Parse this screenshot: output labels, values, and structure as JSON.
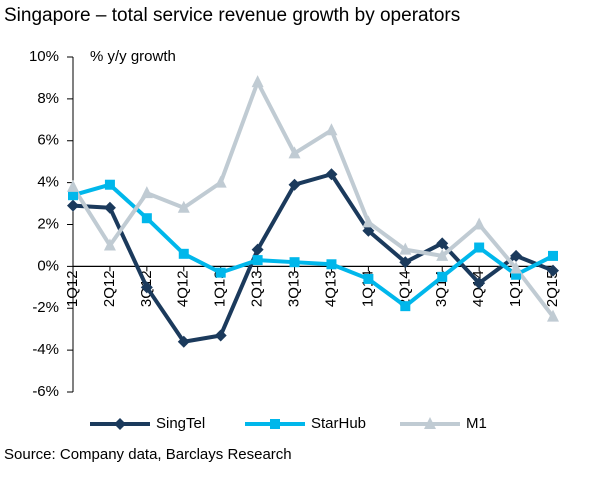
{
  "chart_data": {
    "type": "line",
    "title": "Singapore – total service revenue growth by operators",
    "y_axis_label": "% y/y growth",
    "source": "Source: Company data, Barclays Research",
    "categories": [
      "1Q12",
      "2Q12",
      "3Q12",
      "4Q12",
      "1Q13",
      "2Q13",
      "3Q13",
      "4Q13",
      "1Q14",
      "2Q14",
      "3Q14",
      "4Q14",
      "1Q15",
      "2Q15"
    ],
    "series": [
      {
        "name": "SingTel",
        "color": "#1b3a5c",
        "marker": "diamond",
        "values": [
          2.9,
          2.8,
          -1.0,
          -3.6,
          -3.3,
          0.8,
          3.9,
          4.4,
          1.7,
          0.2,
          1.1,
          -0.8,
          0.5,
          -0.2
        ]
      },
      {
        "name": "StarHub",
        "color": "#00b7eb",
        "marker": "square",
        "values": [
          3.4,
          3.9,
          2.3,
          0.6,
          -0.3,
          0.3,
          0.2,
          0.1,
          -0.6,
          -1.9,
          -0.5,
          0.9,
          -0.4,
          0.5
        ]
      },
      {
        "name": "M1",
        "color": "#c0cbd3",
        "marker": "triangle",
        "values": [
          3.8,
          1.0,
          3.5,
          2.8,
          4.0,
          8.8,
          5.4,
          6.5,
          2.1,
          0.8,
          0.5,
          2.0,
          -0.1,
          -2.4
        ]
      }
    ],
    "ylim": [
      -6,
      10
    ],
    "yticks": [
      {
        "value": -6,
        "label": "-6%"
      },
      {
        "value": -4,
        "label": "-4%"
      },
      {
        "value": -2,
        "label": "-2%"
      },
      {
        "value": 0,
        "label": "0%"
      },
      {
        "value": 2,
        "label": "2%"
      },
      {
        "value": 4,
        "label": "4%"
      },
      {
        "value": 6,
        "label": "6%"
      },
      {
        "value": 8,
        "label": "8%"
      },
      {
        "value": 10,
        "label": "10%"
      }
    ],
    "grid": false,
    "legend": "bottom"
  }
}
